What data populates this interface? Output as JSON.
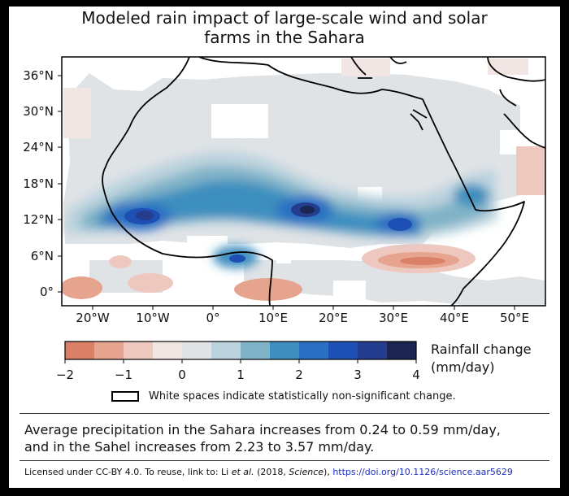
{
  "title_lines": [
    "Modeled rain impact of large-scale wind and solar",
    "farms in the Sahara"
  ],
  "map": {
    "lat_labels": [
      "36°N",
      "30°N",
      "24°N",
      "18°N",
      "12°N",
      "6°N",
      "0°"
    ],
    "lon_labels": [
      "20°W",
      "10°W",
      "0°",
      "10°E",
      "20°E",
      "30°E",
      "40°E",
      "50°E"
    ],
    "extent_lon": [
      -25,
      55
    ],
    "extent_lat": [
      -2,
      38
    ]
  },
  "colorbar": {
    "title_line1": "Rainfall change",
    "title_line2": "(mm/day)",
    "ticks": [
      "−2",
      "−1",
      "0",
      "1",
      "2",
      "3",
      "4"
    ],
    "range": [
      -2,
      4
    ],
    "bin_colors": [
      "#d98066",
      "#e6a48f",
      "#eec8bf",
      "#f1e6e4",
      "#dfe3e6",
      "#bcd3de",
      "#80b3c8",
      "#3e8fbf",
      "#2a6fc2",
      "#1d4fb5",
      "#243d8e",
      "#1c2452"
    ]
  },
  "legend_text": "White spaces indicate statistically non-significant change.",
  "summary_line1": "Average precipitation in the Sahara increases from 0.24 to 0.59 mm/day,",
  "summary_line2": "and in the Sahel increases from 2.23 to 3.57 mm/day.",
  "license": {
    "prefix": "Licensed under CC-BY 4.0. To reuse, link to: Li ",
    "etal": "et al.",
    "mid": " (2018, ",
    "journal": "Science",
    "suffix": "), ",
    "doi": "https://doi.org/10.1126/science.aar5629"
  }
}
